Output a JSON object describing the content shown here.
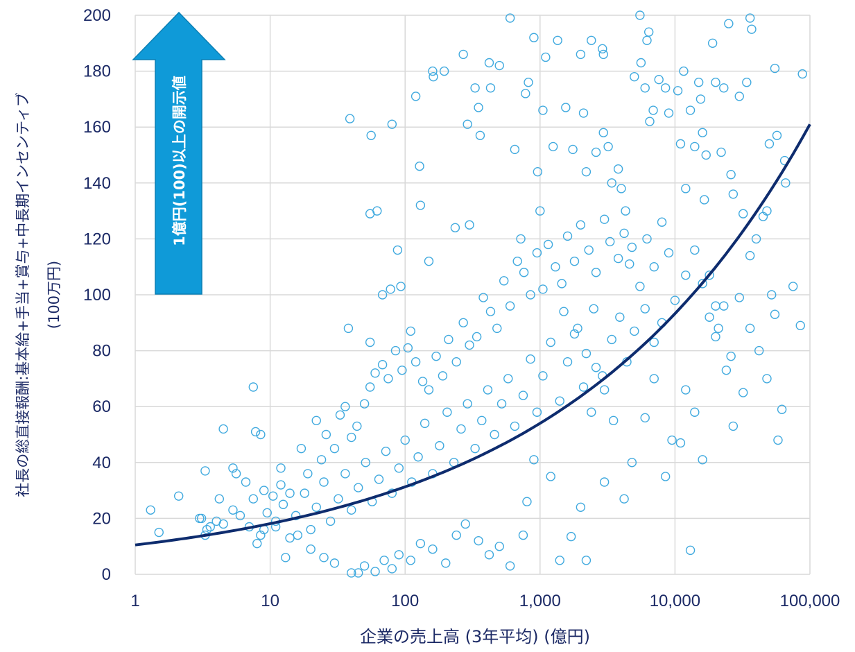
{
  "chart_data": {
    "type": "scatter",
    "x_scale": "log",
    "xlim": [
      1,
      100000
    ],
    "ylim": [
      0,
      200
    ],
    "x_ticks": [
      "1",
      "10",
      "100",
      "1,000",
      "10,000",
      "100,000"
    ],
    "x_tick_values": [
      1,
      10,
      100,
      1000,
      10000,
      100000
    ],
    "y_ticks": [
      "0",
      "20",
      "40",
      "60",
      "80",
      "100",
      "120",
      "140",
      "160",
      "180",
      "200"
    ],
    "y_tick_values": [
      0,
      20,
      40,
      60,
      80,
      100,
      120,
      140,
      160,
      180,
      200
    ],
    "xlabel": "企業の売上高 (3年平均) (億円)",
    "ylabel_line1": "社長の総直接報酬:基本給+手当+賞与+中長期インセンティブ",
    "ylabel_line2": "(100万円)",
    "annotation": "1億円(100)以上の開示値",
    "grid": true,
    "colors": {
      "points": "#41aadf",
      "trend": "#0e2c6e",
      "arrow": "#0f9ad8",
      "text": "#1c2a66"
    },
    "trendline": {
      "type": "exponential",
      "points": [
        [
          1,
          10.5
        ],
        [
          10,
          18
        ],
        [
          100,
          31
        ],
        [
          1000,
          54.5
        ],
        [
          10000,
          93
        ],
        [
          100000,
          161
        ]
      ]
    },
    "series": [
      {
        "points": [
          [
            1.3,
            23
          ],
          [
            1.5,
            15
          ],
          [
            2.1,
            28
          ],
          [
            3.1,
            20
          ],
          [
            3.3,
            37
          ],
          [
            4.5,
            52
          ],
          [
            5.3,
            38
          ],
          [
            7.5,
            67
          ],
          [
            7.8,
            51
          ],
          [
            8.5,
            50
          ],
          [
            12,
            32
          ],
          [
            38,
            88
          ],
          [
            39,
            163
          ],
          [
            55,
            83
          ],
          [
            56,
            157
          ],
          [
            55,
            129
          ],
          [
            62,
            130
          ],
          [
            68,
            100
          ],
          [
            78,
            102
          ],
          [
            80,
            161
          ],
          [
            88,
            116
          ],
          [
            93,
            103
          ],
          [
            110,
            87
          ],
          [
            120,
            171
          ],
          [
            128,
            146
          ],
          [
            130,
            132
          ],
          [
            150,
            112
          ],
          [
            160,
            180
          ],
          [
            162,
            178
          ],
          [
            195,
            180
          ],
          [
            235,
            124
          ],
          [
            270,
            186
          ],
          [
            290,
            161
          ],
          [
            300,
            125
          ],
          [
            330,
            174
          ],
          [
            350,
            167
          ],
          [
            360,
            157
          ],
          [
            420,
            183
          ],
          [
            430,
            174
          ],
          [
            500,
            182
          ],
          [
            600,
            199
          ],
          [
            650,
            152
          ],
          [
            720,
            120
          ],
          [
            780,
            172
          ],
          [
            820,
            176
          ],
          [
            900,
            192
          ],
          [
            960,
            144
          ],
          [
            1000,
            130
          ],
          [
            1050,
            166
          ],
          [
            1100,
            185
          ],
          [
            1250,
            153
          ],
          [
            1350,
            191
          ],
          [
            1550,
            167
          ],
          [
            1750,
            152
          ],
          [
            2000,
            186
          ],
          [
            2100,
            165
          ],
          [
            2200,
            144
          ],
          [
            2400,
            191
          ],
          [
            2600,
            151
          ],
          [
            2900,
            188
          ],
          [
            2950,
            186
          ],
          [
            2950,
            158
          ],
          [
            3200,
            153
          ],
          [
            3400,
            140
          ],
          [
            3800,
            145
          ],
          [
            4000,
            138
          ],
          [
            4200,
            122
          ],
          [
            4600,
            111
          ],
          [
            5000,
            178
          ],
          [
            5500,
            200
          ],
          [
            5600,
            183
          ],
          [
            6000,
            174
          ],
          [
            6200,
            191
          ],
          [
            6400,
            194
          ],
          [
            6500,
            162
          ],
          [
            6900,
            166
          ],
          [
            7600,
            177
          ],
          [
            8500,
            174
          ],
          [
            9000,
            165
          ],
          [
            10500,
            173
          ],
          [
            11000,
            154
          ],
          [
            11600,
            180
          ],
          [
            12000,
            138
          ],
          [
            13000,
            166
          ],
          [
            14000,
            153
          ],
          [
            15000,
            176
          ],
          [
            15500,
            170
          ],
          [
            16000,
            158
          ],
          [
            16500,
            134
          ],
          [
            17000,
            150
          ],
          [
            18000,
            107
          ],
          [
            19000,
            190
          ],
          [
            20000,
            176
          ],
          [
            23000,
            174
          ],
          [
            25000,
            197
          ],
          [
            27000,
            136
          ],
          [
            30000,
            171
          ],
          [
            32000,
            129
          ],
          [
            34000,
            176
          ],
          [
            36000,
            199
          ],
          [
            37000,
            195
          ],
          [
            40000,
            120
          ],
          [
            48000,
            130
          ],
          [
            50000,
            154
          ],
          [
            55000,
            181
          ],
          [
            57000,
            157
          ],
          [
            65000,
            148
          ],
          [
            66000,
            140
          ],
          [
            75000,
            103
          ],
          [
            85000,
            89
          ],
          [
            88000,
            179
          ],
          [
            36000,
            114
          ],
          [
            26000,
            143
          ],
          [
            22000,
            151
          ],
          [
            20000,
            96
          ],
          [
            21000,
            88
          ],
          [
            24000,
            73
          ],
          [
            27000,
            53
          ],
          [
            32000,
            65
          ],
          [
            45000,
            128
          ],
          [
            52000,
            100
          ],
          [
            62000,
            59
          ],
          [
            58000,
            48
          ],
          [
            13000,
            8.6
          ],
          [
            11000,
            47
          ],
          [
            16000,
            41
          ],
          [
            8500,
            35
          ],
          [
            9500,
            48
          ],
          [
            12000,
            66
          ],
          [
            14000,
            58
          ],
          [
            7000,
            70
          ],
          [
            6000,
            56
          ],
          [
            4800,
            40
          ],
          [
            4200,
            27
          ],
          [
            3500,
            55
          ],
          [
            3000,
            66
          ],
          [
            2600,
            74
          ],
          [
            2200,
            79
          ],
          [
            1800,
            86
          ],
          [
            1500,
            94
          ],
          [
            2400,
            58
          ],
          [
            3000,
            33
          ],
          [
            2000,
            24
          ],
          [
            1700,
            13.5
          ],
          [
            1400,
            5
          ],
          [
            2200,
            5
          ],
          [
            1200,
            35
          ],
          [
            900,
            41
          ],
          [
            800,
            26
          ],
          [
            750,
            14
          ],
          [
            600,
            3
          ],
          [
            500,
            10
          ],
          [
            420,
            7
          ],
          [
            350,
            12
          ],
          [
            280,
            18
          ],
          [
            240,
            14
          ],
          [
            200,
            4
          ],
          [
            160,
            9
          ],
          [
            130,
            11
          ],
          [
            110,
            5
          ],
          [
            90,
            7
          ],
          [
            80,
            2
          ],
          [
            70,
            5
          ],
          [
            60,
            1
          ],
          [
            50,
            3
          ],
          [
            45,
            0.5
          ],
          [
            40,
            0.5
          ],
          [
            30,
            4
          ],
          [
            25,
            6
          ],
          [
            20,
            9
          ],
          [
            16,
            14
          ],
          [
            13,
            6
          ],
          [
            11,
            19
          ],
          [
            9,
            16
          ],
          [
            8,
            11
          ],
          [
            7,
            17
          ],
          [
            6,
            21
          ],
          [
            5.3,
            23
          ],
          [
            4.5,
            18
          ],
          [
            4,
            19
          ],
          [
            3.6,
            17
          ],
          [
            3.3,
            14
          ],
          [
            3,
            20
          ],
          [
            3.4,
            16
          ],
          [
            4.2,
            27
          ],
          [
            5.6,
            36
          ],
          [
            6.6,
            33
          ],
          [
            7.5,
            27
          ],
          [
            9,
            30
          ],
          [
            10.5,
            28
          ],
          [
            12,
            38
          ],
          [
            14,
            29
          ],
          [
            17,
            45
          ],
          [
            19,
            36
          ],
          [
            22,
            55
          ],
          [
            24,
            41
          ],
          [
            26,
            50
          ],
          [
            30,
            45
          ],
          [
            33,
            57
          ],
          [
            36,
            60
          ],
          [
            40,
            49
          ],
          [
            44,
            53
          ],
          [
            50,
            61
          ],
          [
            55,
            67
          ],
          [
            60,
            72
          ],
          [
            68,
            75
          ],
          [
            75,
            70
          ],
          [
            85,
            80
          ],
          [
            95,
            73
          ],
          [
            105,
            81
          ],
          [
            120,
            76
          ],
          [
            135,
            69
          ],
          [
            150,
            66
          ],
          [
            170,
            78
          ],
          [
            190,
            71
          ],
          [
            210,
            84
          ],
          [
            240,
            76
          ],
          [
            270,
            90
          ],
          [
            300,
            82
          ],
          [
            340,
            85
          ],
          [
            380,
            99
          ],
          [
            430,
            94
          ],
          [
            480,
            88
          ],
          [
            540,
            105
          ],
          [
            600,
            96
          ],
          [
            680,
            112
          ],
          [
            760,
            108
          ],
          [
            850,
            100
          ],
          [
            950,
            115
          ],
          [
            1050,
            102
          ],
          [
            1150,
            118
          ],
          [
            1300,
            110
          ],
          [
            1450,
            104
          ],
          [
            1600,
            121
          ],
          [
            1800,
            112
          ],
          [
            2000,
            125
          ],
          [
            2300,
            116
          ],
          [
            2600,
            108
          ],
          [
            3000,
            127
          ],
          [
            3300,
            119
          ],
          [
            3800,
            113
          ],
          [
            4300,
            130
          ],
          [
            4800,
            117
          ],
          [
            5500,
            103
          ],
          [
            6200,
            120
          ],
          [
            7000,
            110
          ],
          [
            8000,
            126
          ],
          [
            9000,
            115
          ],
          [
            10000,
            98
          ],
          [
            12000,
            107
          ],
          [
            14000,
            116
          ],
          [
            16000,
            104
          ],
          [
            18000,
            92
          ],
          [
            20000,
            85
          ],
          [
            23000,
            96
          ],
          [
            26000,
            78
          ],
          [
            30000,
            99
          ],
          [
            36000,
            88
          ],
          [
            42000,
            80
          ],
          [
            48000,
            70
          ],
          [
            55000,
            93
          ],
          [
            8000,
            90
          ],
          [
            7000,
            83
          ],
          [
            6000,
            95
          ],
          [
            5000,
            87
          ],
          [
            4400,
            76
          ],
          [
            3900,
            92
          ],
          [
            3400,
            84
          ],
          [
            2900,
            71
          ],
          [
            2500,
            95
          ],
          [
            2100,
            67
          ],
          [
            1900,
            88
          ],
          [
            1600,
            76
          ],
          [
            1400,
            62
          ],
          [
            1200,
            83
          ],
          [
            1050,
            71
          ],
          [
            950,
            58
          ],
          [
            850,
            77
          ],
          [
            750,
            64
          ],
          [
            650,
            53
          ],
          [
            580,
            70
          ],
          [
            520,
            61
          ],
          [
            460,
            50
          ],
          [
            410,
            66
          ],
          [
            370,
            55
          ],
          [
            330,
            45
          ],
          [
            290,
            61
          ],
          [
            260,
            52
          ],
          [
            230,
            40
          ],
          [
            205,
            58
          ],
          [
            180,
            46
          ],
          [
            160,
            36
          ],
          [
            140,
            54
          ],
          [
            125,
            42
          ],
          [
            112,
            33
          ],
          [
            100,
            48
          ],
          [
            90,
            38
          ],
          [
            80,
            29
          ],
          [
            72,
            44
          ],
          [
            64,
            34
          ],
          [
            57,
            26
          ],
          [
            51,
            40
          ],
          [
            45,
            31
          ],
          [
            40,
            23
          ],
          [
            36,
            36
          ],
          [
            32,
            27
          ],
          [
            28,
            19
          ],
          [
            25,
            33
          ],
          [
            22,
            24
          ],
          [
            20,
            16
          ],
          [
            18,
            29
          ],
          [
            15.5,
            21
          ],
          [
            14,
            13
          ],
          [
            12.5,
            25
          ],
          [
            11,
            17
          ],
          [
            9.5,
            22
          ],
          [
            8.5,
            14
          ]
        ]
      }
    ]
  }
}
